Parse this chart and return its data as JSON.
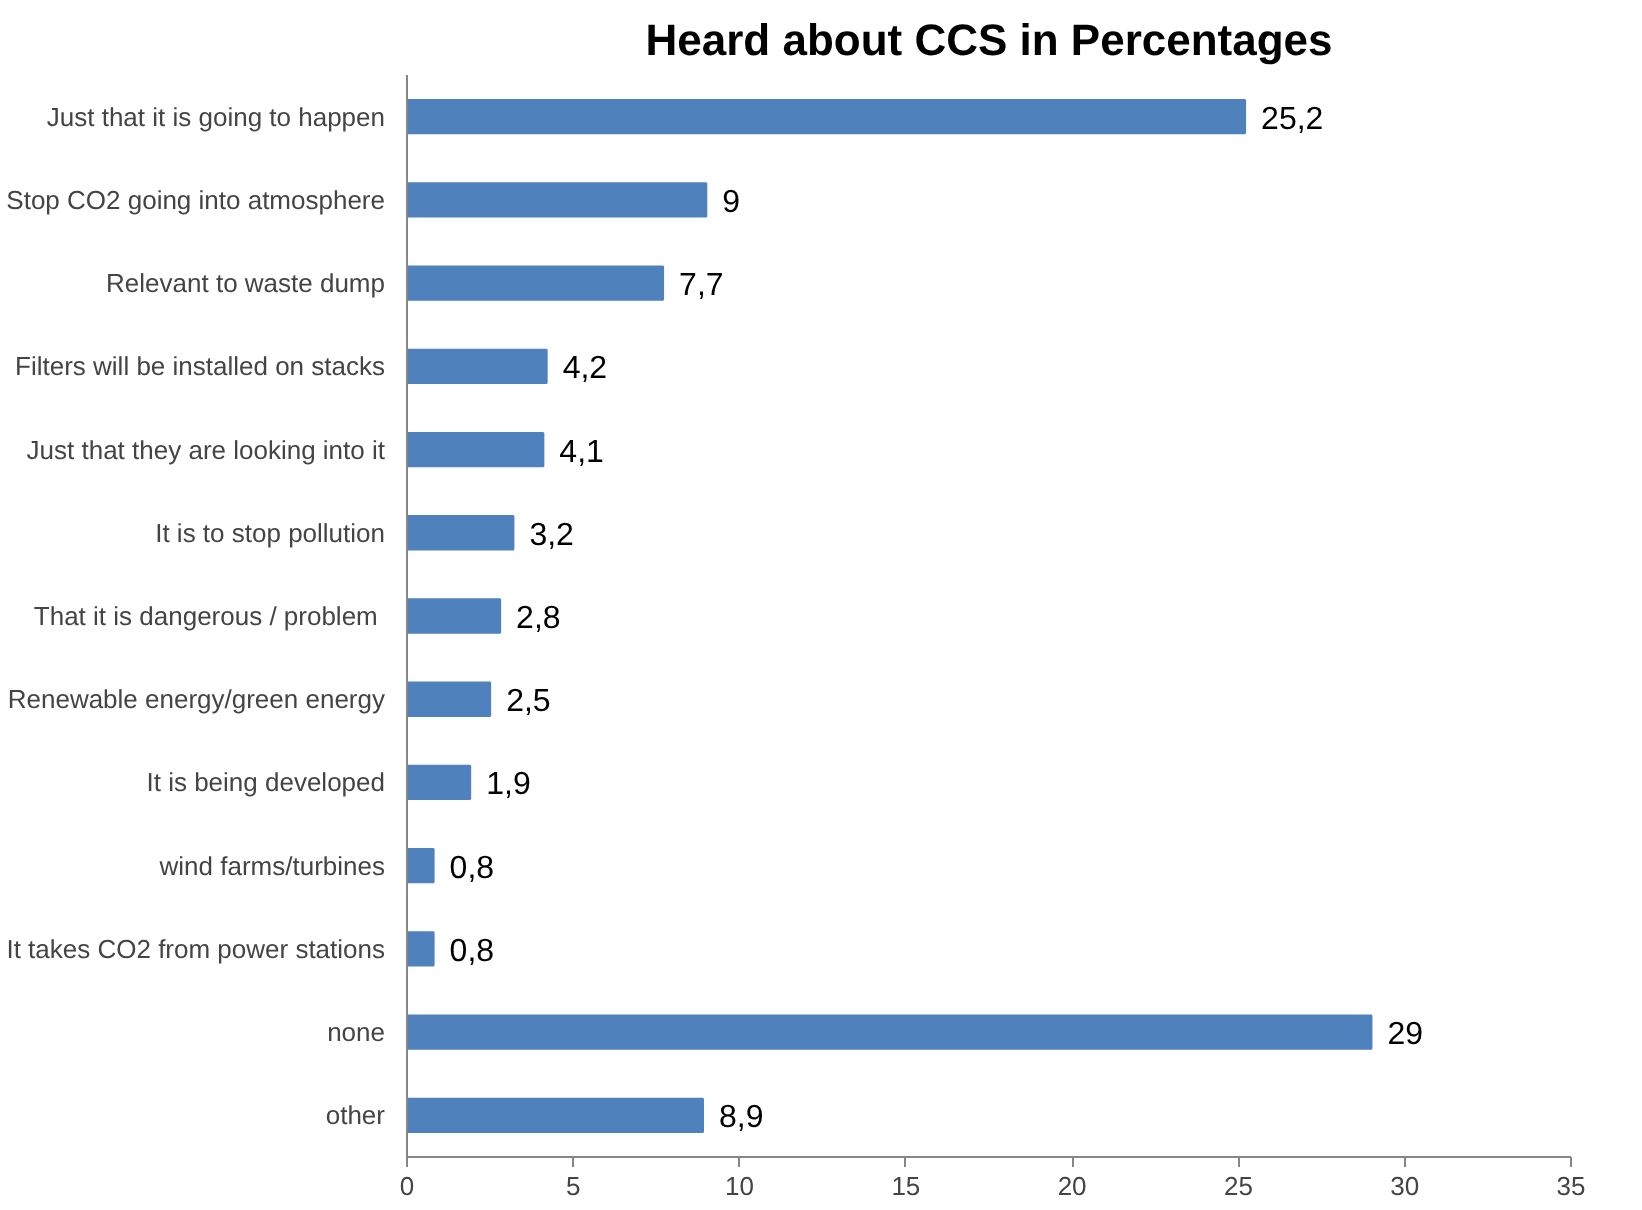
{
  "chart_data": {
    "type": "bar",
    "orientation": "horizontal",
    "title": "Heard about CCS in Percentages",
    "categories": [
      "Just that it is going to happen",
      "Stop CO2 going into atmosphere",
      "Relevant to waste dump",
      "Filters will be installed on stacks",
      "Just that they are looking into it",
      "It is to stop pollution",
      "That it is dangerous  / problem",
      "Renewable energy/green energy",
      "It is being developed",
      "wind farms/turbines",
      "It takes CO2 from power stations",
      "none",
      "other"
    ],
    "values": [
      25.2,
      9,
      7.7,
      4.2,
      4.1,
      3.2,
      2.8,
      2.5,
      1.9,
      0.8,
      0.8,
      29,
      8.9
    ],
    "value_labels": [
      "25,2",
      "9",
      "7,7",
      "4,2",
      "4,1",
      "3,2",
      "2,8",
      "2,5",
      "1,9",
      "0,8",
      "0,8",
      "29",
      "8,9"
    ],
    "color": "#4f81bd",
    "xlim": [
      0,
      35
    ],
    "xticks": [
      0,
      5,
      10,
      15,
      20,
      25,
      30,
      35
    ],
    "grid": false
  }
}
